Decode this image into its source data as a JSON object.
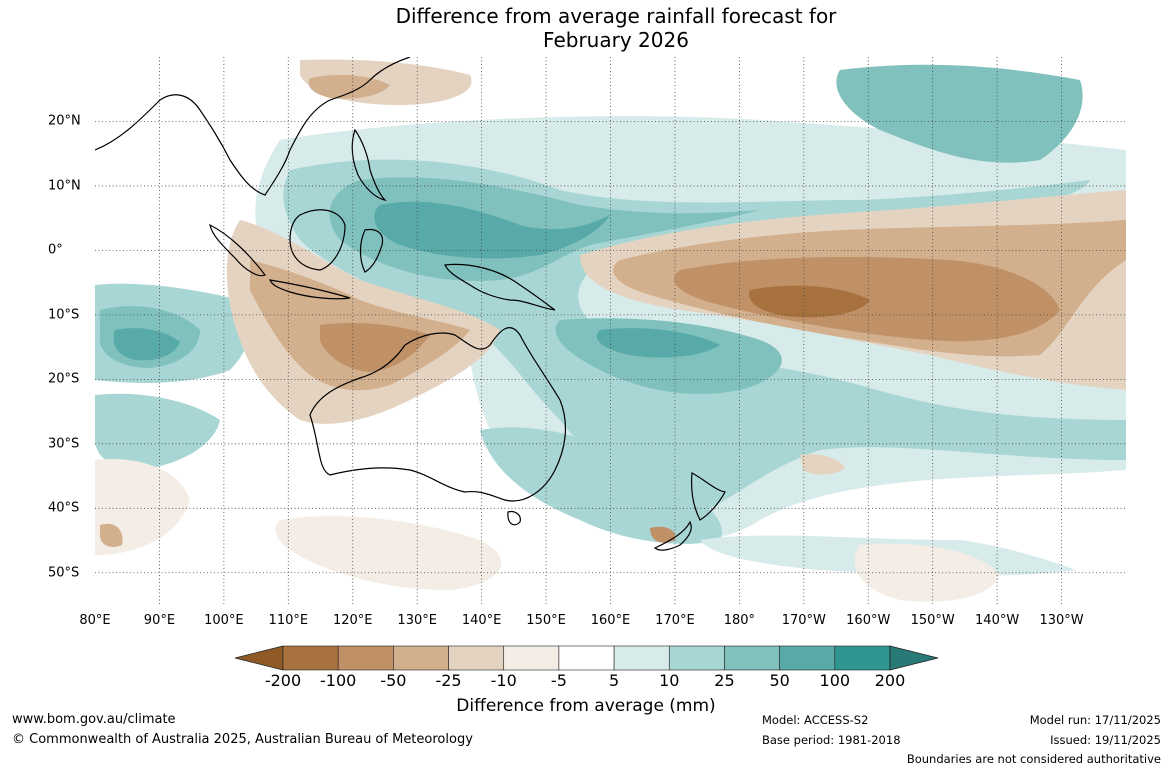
{
  "title": {
    "line1": "Difference from average rainfall forecast for",
    "line2": "February 2026"
  },
  "map": {
    "lon_labels": [
      "80°E",
      "90°E",
      "100°E",
      "110°E",
      "120°E",
      "130°E",
      "140°E",
      "150°E",
      "160°E",
      "170°E",
      "180°",
      "170°W",
      "160°W",
      "150°W",
      "140°W",
      "130°W"
    ],
    "lat_labels": [
      "20°N",
      "10°N",
      "0°",
      "10°S",
      "20°S",
      "30°S",
      "40°S",
      "50°S"
    ],
    "lon_range": [
      80,
      240
    ],
    "lat_range": [
      -55,
      30
    ],
    "gridlines": "dotted"
  },
  "colorbar": {
    "labels": [
      "-200",
      "-100",
      "-50",
      "-25",
      "-10",
      "-5",
      "5",
      "10",
      "25",
      "50",
      "100",
      "200"
    ],
    "colors": [
      "#8f5a25",
      "#a8723e",
      "#c09066",
      "#d2af8d",
      "#e5d3c1",
      "#f3ede6",
      "#ffffff",
      "#d7ebea",
      "#a8d6d4",
      "#80c1be",
      "#58aaa8",
      "#319692",
      "#277a76"
    ],
    "title": "Difference from average (mm)"
  },
  "footer": {
    "url": "www.bom.gov.au/climate",
    "copyright": "© Commonwealth of Australia 2025, Australian Bureau of Meteorology",
    "model": "Model: ACCESS-S2",
    "base_period": "Base period: 1981-2018",
    "model_run": "Model run: 17/11/2025",
    "issued": "Issued: 19/11/2025",
    "boundaries": "Boundaries are not considered authoritative"
  }
}
